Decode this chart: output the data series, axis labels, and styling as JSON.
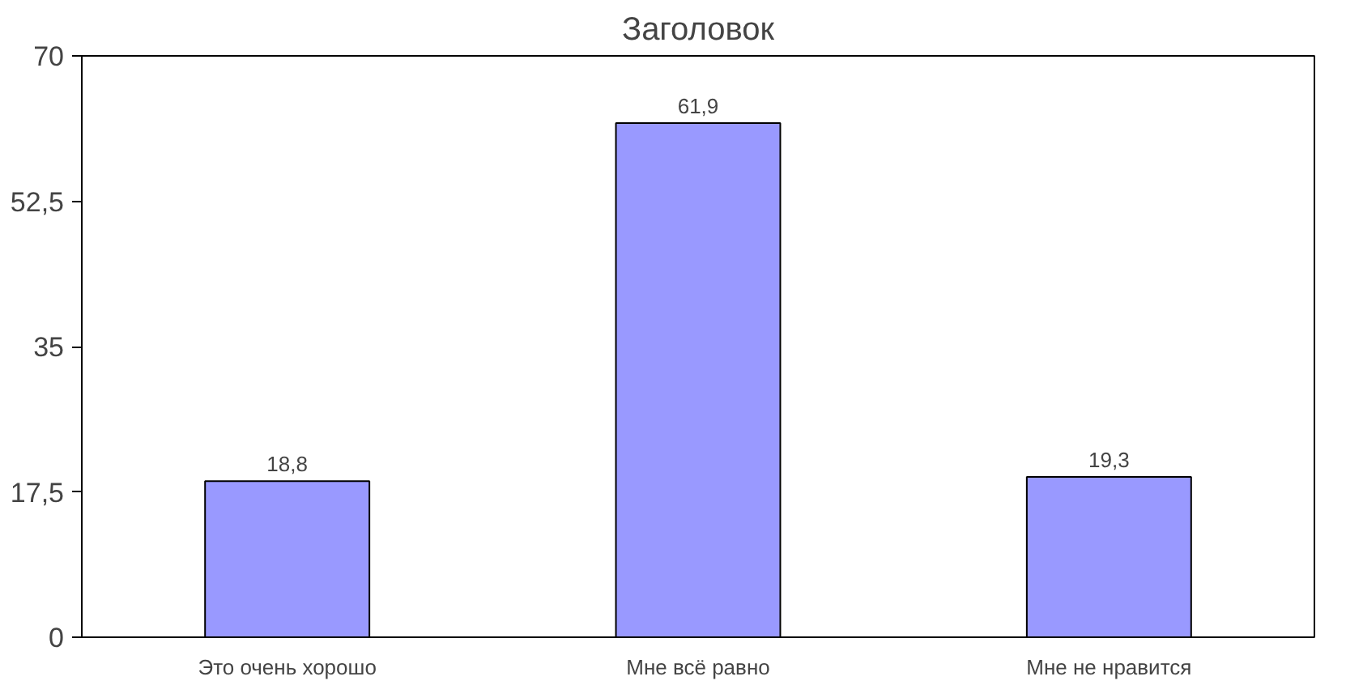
{
  "chart_data": {
    "type": "bar",
    "title": "Заголовок",
    "categories": [
      "Это очень хорошо",
      "Мне всё равно",
      "Мне не нравится"
    ],
    "values": [
      18.8,
      61.9,
      19.3
    ],
    "color": "#9999ff",
    "value_labels": [
      "18,8",
      "61,9",
      "19,3"
    ],
    "ylim": [
      0,
      70
    ],
    "yticks": [
      0,
      {
        "value": 17.5,
        "label": "17,5"
      },
      35,
      {
        "value": 52.5,
        "label": "52,5"
      },
      70
    ],
    "grid": false
  }
}
